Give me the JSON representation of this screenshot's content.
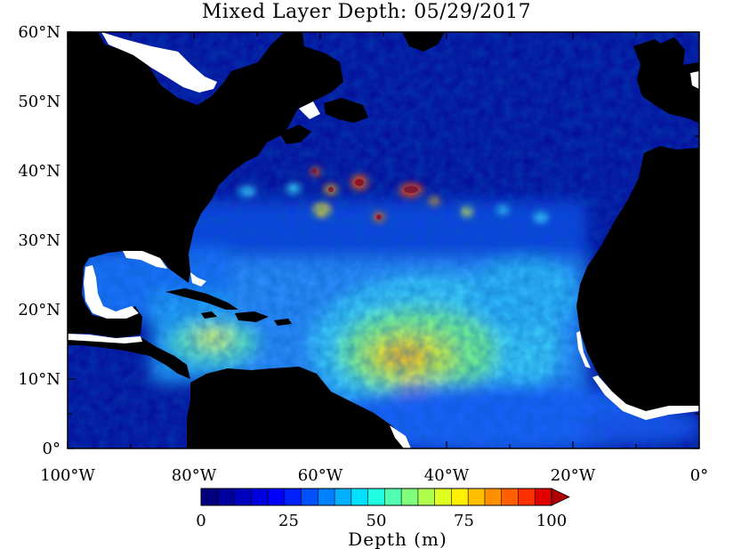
{
  "title": "Mixed Layer Depth: 05/29/2017",
  "map": {
    "lon_labels": [
      "100°W",
      "80°W",
      "60°W",
      "40°W",
      "20°W",
      "0°"
    ],
    "lat_labels": [
      "60°N",
      "50°N",
      "40°N",
      "30°N",
      "20°N",
      "10°N",
      "0°"
    ],
    "land_color": "#000000",
    "ocean_background": "#00008f"
  },
  "colorbar": {
    "tick_labels": [
      "0",
      "25",
      "50",
      "75",
      "100"
    ],
    "title": "Depth (m)",
    "colors": [
      "#00007f",
      "#00009f",
      "#0000bf",
      "#0000df",
      "#0000ff",
      "#0020ff",
      "#0050ff",
      "#0080ff",
      "#00b0ff",
      "#00e0ff",
      "#20ffdf",
      "#50ffaf",
      "#80ff7f",
      "#b0ff4f",
      "#dfff20",
      "#ffef00",
      "#ffbf00",
      "#ff8f00",
      "#ff5f00",
      "#ff2f00",
      "#df0000",
      "#af0000"
    ],
    "extend": "max"
  }
}
